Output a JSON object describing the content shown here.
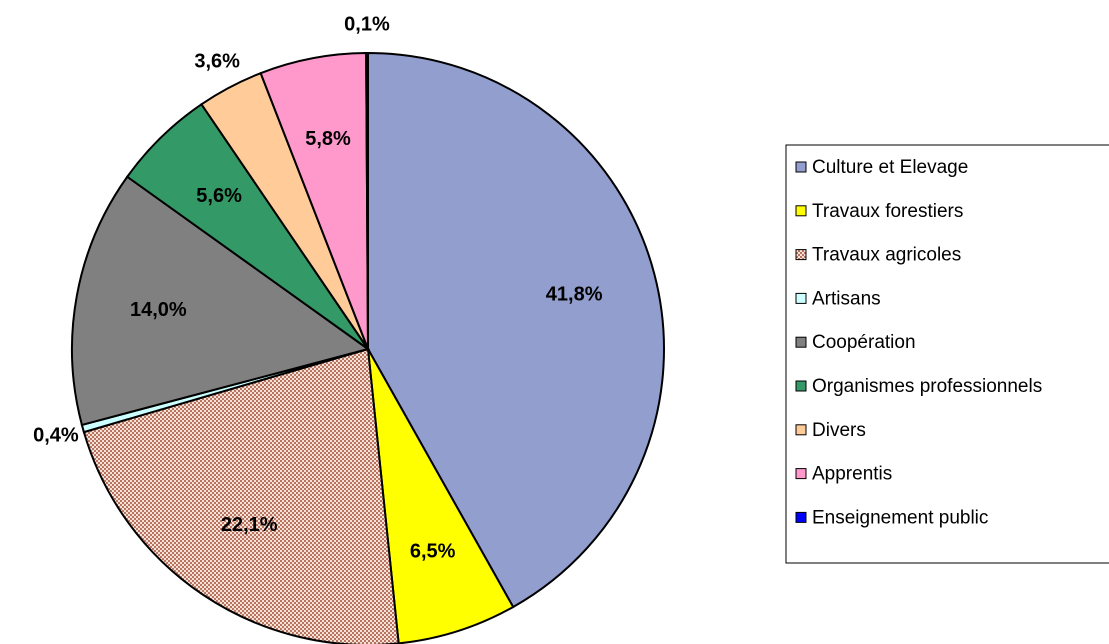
{
  "chart_data": {
    "type": "pie",
    "categories": [
      "Culture et Elevage",
      "Travaux forestiers",
      "Travaux agricoles",
      "Artisans",
      "Coopération",
      "Organismes professionnels",
      "Divers",
      "Apprentis",
      "Enseignement public"
    ],
    "values": [
      41.8,
      6.5,
      22.1,
      0.4,
      14.0,
      5.6,
      3.6,
      5.8,
      0.1
    ],
    "value_labels": [
      "41,8%",
      "6,5%",
      "22,1%",
      "0,4%",
      "14,0%",
      "5,6%",
      "3,6%",
      "5,8%",
      "0,1%"
    ],
    "colors": [
      "#929ecd",
      "#ffff00",
      "pattern",
      "#ccffff",
      "#808080",
      "#339966",
      "#ffcc99",
      "#ff99cc",
      "#0000ff"
    ],
    "legend": "right"
  }
}
